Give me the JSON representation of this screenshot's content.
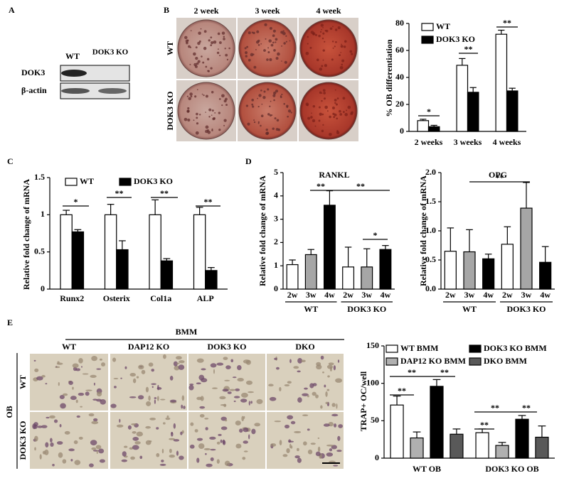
{
  "panel_labels": [
    "A",
    "B",
    "C",
    "D",
    "E"
  ],
  "blot": {
    "columns": [
      "WT",
      "DOK3 KO"
    ],
    "rows": [
      "DOK3",
      "β-actin"
    ]
  },
  "photos_b": {
    "columns": [
      "2 week",
      "3 week",
      "4 week"
    ],
    "rows": [
      "WT",
      "DOK3 KO"
    ]
  },
  "photos_e": {
    "header": "BMM",
    "group": "OB",
    "columns": [
      "WT",
      "DAP12 KO",
      "DOK3 KO",
      "DKO"
    ],
    "rows": [
      "WT",
      "DOK3 KO"
    ]
  },
  "chart_data": [
    {
      "type": "bar",
      "y_label": "% OB differentiation",
      "categories": [
        "2 weeks",
        "3 weeks",
        "4 weeks"
      ],
      "series": [
        {
          "name": "WT",
          "color": "#ffffff",
          "values": [
            8,
            49,
            72
          ],
          "errors": [
            1,
            5,
            3
          ]
        },
        {
          "name": "DOK3 KO",
          "color": "#000000",
          "values": [
            3.5,
            29,
            30
          ],
          "errors": [
            1,
            3.5,
            2
          ]
        }
      ],
      "ylim": [
        0,
        80
      ],
      "yticks": [
        0,
        20,
        40,
        60,
        80
      ],
      "annotations": [
        "*",
        "**",
        "**"
      ]
    },
    {
      "type": "bar",
      "y_label": "Relative fold change of mRNA",
      "categories": [
        "Runx2",
        "Osterix",
        "Col1a",
        "ALP"
      ],
      "series": [
        {
          "name": "WT",
          "color": "#ffffff",
          "values": [
            1,
            1,
            1,
            1
          ],
          "errors": [
            0.06,
            0.14,
            0.2,
            0.1
          ]
        },
        {
          "name": "DOK3 KO",
          "color": "#000000",
          "values": [
            0.77,
            0.53,
            0.38,
            0.25
          ],
          "errors": [
            0.03,
            0.12,
            0.03,
            0.04
          ]
        }
      ],
      "ylim": [
        0,
        1.5
      ],
      "yticks": [
        0,
        0.5,
        1,
        1.5
      ],
      "annotations": [
        "*",
        "**",
        "**",
        "**"
      ]
    },
    {
      "type": "bar",
      "title": "RANKL",
      "y_label": "Relative fold change of mRNA",
      "categories": [
        "2w",
        "3w",
        "4w",
        "2w",
        "3w",
        "4w"
      ],
      "groups": [
        "WT",
        "DOK3 KO"
      ],
      "series": [
        {
          "colors": [
            "#ffffff",
            "#a6a6a6",
            "#000000",
            "#ffffff",
            "#a6a6a6",
            "#000000"
          ],
          "values": [
            1.05,
            1.48,
            3.6,
            0.95,
            0.95,
            1.7
          ],
          "errors": [
            0.2,
            0.22,
            0.62,
            0.85,
            0.78,
            0.17
          ]
        }
      ],
      "ylim": [
        0,
        5
      ],
      "yticks": [
        0,
        1,
        2,
        3,
        4,
        5
      ],
      "annotations": [
        "**",
        "**",
        "*"
      ]
    },
    {
      "type": "bar",
      "title": "OPG",
      "y_label": "Relative fold change of mRNA",
      "categories": [
        "2w",
        "3w",
        "4w",
        "2w",
        "3w",
        "4w"
      ],
      "groups": [
        "WT",
        "DOK3 KO"
      ],
      "series": [
        {
          "colors": [
            "#ffffff",
            "#a6a6a6",
            "#000000",
            "#ffffff",
            "#a6a6a6",
            "#000000"
          ],
          "values": [
            0.65,
            0.64,
            0.52,
            0.77,
            1.39,
            0.46
          ],
          "errors": [
            0.4,
            0.38,
            0.08,
            0.3,
            0.44,
            0.27
          ]
        }
      ],
      "ylim": [
        0,
        2
      ],
      "yticks": [
        {
          "value": 0,
          "label": "0.0"
        },
        0.5,
        {
          "value": 1,
          "label": "1.0"
        },
        1.5,
        {
          "value": 2,
          "label": "2.0"
        }
      ],
      "annotations": [
        "**"
      ]
    },
    {
      "type": "bar",
      "y_label": "TRAP+ OC/well",
      "categories": [
        "WT OB",
        "DOK3 KO OB"
      ],
      "series": [
        {
          "name": "WT BMM",
          "color": "#ffffff",
          "values": [
            71,
            34
          ],
          "errors": [
            12,
            5
          ]
        },
        {
          "name": "DAP12 KO BMM",
          "color": "#b0b0b0",
          "values": [
            27,
            17
          ],
          "errors": [
            8,
            4
          ]
        },
        {
          "name": "DOK3 KO BMM",
          "color": "#000000",
          "values": [
            96,
            52
          ],
          "errors": [
            9,
            5
          ]
        },
        {
          "name": "DKO BMM",
          "color": "#595959",
          "values": [
            32,
            28
          ],
          "errors": [
            7,
            15
          ]
        }
      ],
      "ylim": [
        0,
        150
      ],
      "yticks": [
        0,
        50,
        100,
        150
      ],
      "annotations": [
        "**",
        "**",
        "**",
        "**",
        "**",
        "**"
      ]
    }
  ]
}
